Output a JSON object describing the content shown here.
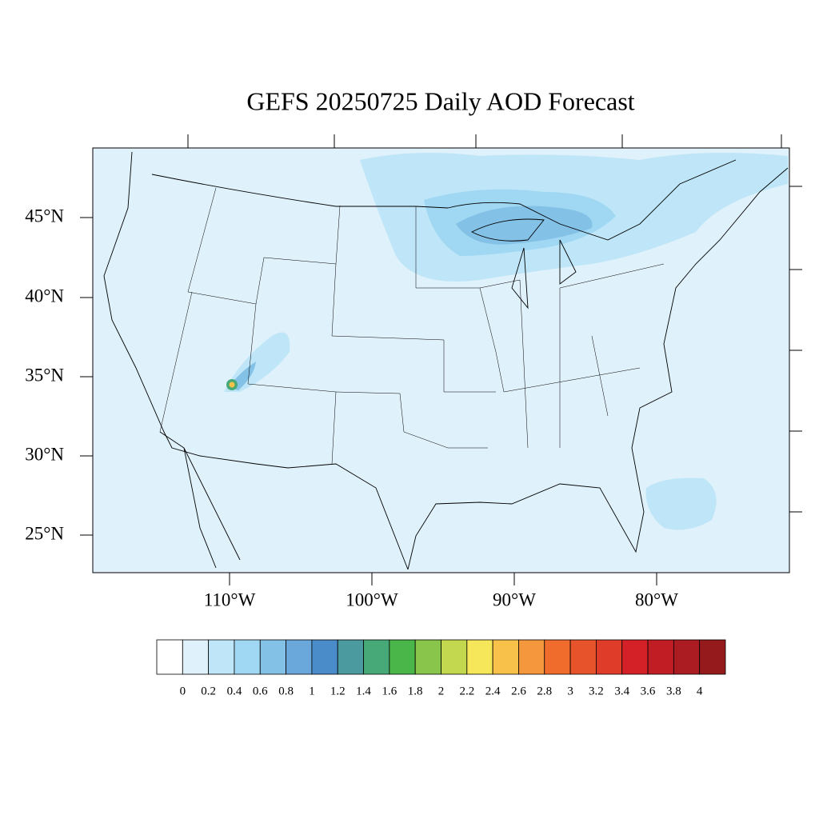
{
  "map": {
    "title": "GEFS 20250725 Daily AOD Forecast",
    "lat_labels": [
      "45°N",
      "40°N",
      "35°N",
      "30°N",
      "25°N"
    ],
    "lon_labels": [
      "110°W",
      "100°W",
      "90°W",
      "80°W"
    ],
    "colorbar": {
      "labels": [
        0,
        0.2,
        0.4,
        0.6,
        0.8,
        1,
        1.2,
        1.4,
        1.6,
        1.8,
        2,
        2.2,
        2.4,
        2.6,
        2.8,
        3,
        3.2,
        3.4,
        3.6,
        3.8,
        4
      ],
      "colors": [
        "#ffffff",
        "#dff1fa",
        "#bfe6f8",
        "#a0d8f3",
        "#84c1e6",
        "#6aa8dc",
        "#4a8bc9",
        "#4b9aa0",
        "#47a978",
        "#4ab548",
        "#88c54a",
        "#c3d84e",
        "#f6e65a",
        "#f7c14a",
        "#f5973d",
        "#f06c2c",
        "#e7532b",
        "#e03c2a",
        "#d42127",
        "#c01d25",
        "#aa1b22",
        "#941a1c"
      ]
    }
  }
}
